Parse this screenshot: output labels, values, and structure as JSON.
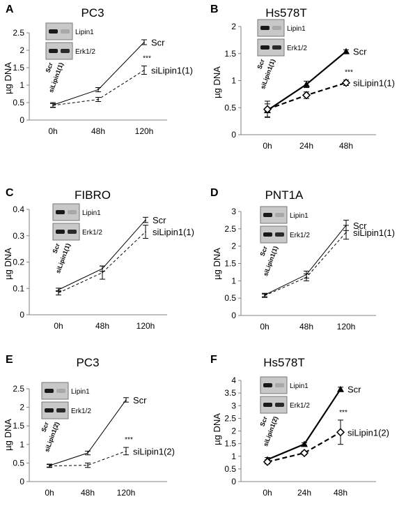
{
  "chart_data": [
    {
      "panel": "A",
      "title": "PC3",
      "type": "line",
      "ylabel": "µg DNA",
      "ylim": [
        0,
        2.5
      ],
      "yticks": [
        "0",
        "0.5",
        "1",
        "1.5",
        "2",
        "2.5"
      ],
      "categories": [
        "0h",
        "48h",
        "120h"
      ],
      "series": [
        {
          "name": "Scr",
          "values": [
            0.43,
            0.87,
            2.23
          ],
          "errors": [
            0.07,
            0.06,
            0.07
          ],
          "style": "solid-thin"
        },
        {
          "name": "siLipin1(1)",
          "values": [
            0.42,
            0.59,
            1.43
          ],
          "errors": [
            0.05,
            0.06,
            0.12
          ],
          "style": "dashed-thin"
        }
      ],
      "significance": "***",
      "blot": {
        "bands": [
          "Lipin1",
          "Erk1/2"
        ],
        "lanes": [
          "Scr",
          "siLipin1(1)"
        ]
      }
    },
    {
      "panel": "B",
      "title": "Hs578T",
      "type": "line",
      "ylabel": "µg DNA",
      "ylim": [
        0,
        2
      ],
      "yticks": [
        "0",
        "0.5",
        "1",
        "1.5",
        "2"
      ],
      "categories": [
        "0h",
        "24h",
        "48h"
      ],
      "series": [
        {
          "name": "Scr",
          "values": [
            0.45,
            0.93,
            1.54
          ],
          "errors": [
            0.12,
            0.06,
            0.03
          ],
          "style": "solid-bold-triangle"
        },
        {
          "name": "siLipin1(1)",
          "values": [
            0.47,
            0.73,
            0.96
          ],
          "errors": [
            0.15,
            0.06,
            0.05
          ],
          "style": "dashed-bold-diamond"
        }
      ],
      "significance": "***",
      "blot": {
        "bands": [
          "Lipin1",
          "Erk1/2"
        ],
        "lanes": [
          "Scr",
          "siLipin1(1)"
        ]
      }
    },
    {
      "panel": "C",
      "title": "FIBRO",
      "type": "line",
      "ylabel": "µg DNA",
      "ylim": [
        0,
        0.4
      ],
      "yticks": [
        "0",
        "0.1",
        "0.2",
        "0.3",
        "0.4"
      ],
      "categories": [
        "0h",
        "48h",
        "120h"
      ],
      "series": [
        {
          "name": "Scr",
          "values": [
            0.095,
            0.175,
            0.36
          ],
          "errors": [
            0.006,
            0.01,
            0.01
          ],
          "style": "solid-thin"
        },
        {
          "name": "siLipin1(1)",
          "values": [
            0.083,
            0.16,
            0.315
          ],
          "errors": [
            0.008,
            0.025,
            0.025
          ],
          "style": "dashed-thin"
        }
      ],
      "blot": {
        "bands": [
          "Lipin1",
          "Erk1/2"
        ],
        "lanes": [
          "Scr",
          "siLipin1(1)"
        ]
      }
    },
    {
      "panel": "D",
      "title": "PNT1A",
      "type": "line",
      "ylabel": "µg DNA",
      "ylim": [
        0,
        3
      ],
      "yticks": [
        "0",
        "0.5",
        "1",
        "1.5",
        "2",
        "2.5",
        "3"
      ],
      "categories": [
        "0h",
        "48h",
        "120h"
      ],
      "series": [
        {
          "name": "Scr",
          "values": [
            0.59,
            1.18,
            2.6
          ],
          "errors": [
            0.05,
            0.1,
            0.15
          ],
          "style": "solid-thin"
        },
        {
          "name": "siLipin1(1)",
          "values": [
            0.57,
            1.1,
            2.4
          ],
          "errors": [
            0.05,
            0.1,
            0.2
          ],
          "style": "dashed-thin"
        }
      ],
      "blot": {
        "bands": [
          "Lipin1",
          "Erk1/2"
        ],
        "lanes": [
          "Scr",
          "siLipin1(1)"
        ]
      }
    },
    {
      "panel": "E",
      "title": "PC3",
      "type": "line",
      "ylabel": "µg DNA",
      "ylim": [
        0,
        2.5
      ],
      "yticks": [
        "0",
        "0.5",
        "1",
        "1.5",
        "2",
        "2.5"
      ],
      "categories": [
        "0h",
        "48h",
        "120h"
      ],
      "series": [
        {
          "name": "Scr",
          "values": [
            0.43,
            0.77,
            2.2
          ],
          "errors": [
            0.04,
            0.05,
            0.06
          ],
          "style": "solid-thin"
        },
        {
          "name": "siLipin1(2)",
          "values": [
            0.42,
            0.44,
            0.82
          ],
          "errors": [
            0.04,
            0.06,
            0.1
          ],
          "style": "dashed-thin"
        }
      ],
      "significance": "***",
      "blot": {
        "bands": [
          "Lipin1",
          "Erk1/2"
        ],
        "lanes": [
          "Scr",
          "siLipin1(2)"
        ]
      }
    },
    {
      "panel": "F",
      "title": "Hs578T",
      "type": "line",
      "ylabel": "µg DNA",
      "ylim": [
        0,
        4
      ],
      "yticks": [
        "0",
        "0.5",
        "1",
        "1.5",
        "2",
        "2.5",
        "3",
        "3.5",
        "4"
      ],
      "categories": [
        "0h",
        "24h",
        "48h"
      ],
      "series": [
        {
          "name": "Scr",
          "values": [
            0.87,
            1.48,
            3.65
          ],
          "errors": [
            0.08,
            0.05,
            0.08
          ],
          "style": "solid-bold-triangle"
        },
        {
          "name": "siLipin1(2)",
          "values": [
            0.78,
            1.13,
            1.95
          ],
          "errors": [
            0.08,
            0.07,
            0.48
          ],
          "style": "dashed-bold-diamond"
        }
      ],
      "significance": "***",
      "blot": {
        "bands": [
          "Lipin1",
          "Erk1/2"
        ],
        "lanes": [
          "Scr",
          "siLipin1(2)"
        ]
      }
    }
  ]
}
